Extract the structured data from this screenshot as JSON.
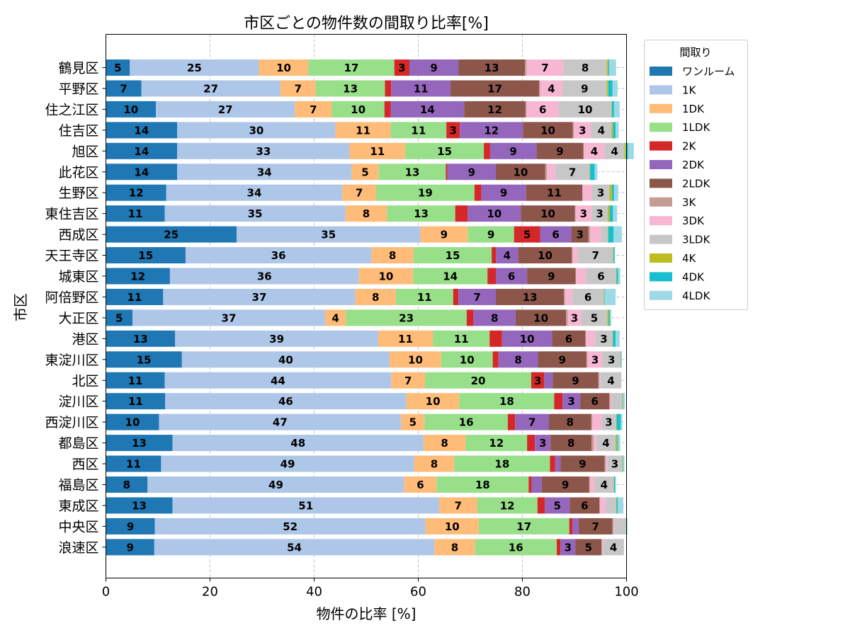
{
  "chart_data": {
    "type": "bar",
    "orientation": "horizontal",
    "stacked": true,
    "title": "市区ごとの物件数の間取り比率[%]",
    "xlabel": "物件の比率 [%]",
    "ylabel": "市区",
    "xlim": [
      0,
      100
    ],
    "xticks": [
      0,
      20,
      40,
      60,
      80,
      100
    ],
    "grid": true,
    "legend": {
      "title": "間取り",
      "placement": "right-outside-top"
    },
    "categories": [
      "鶴見区",
      "平野区",
      "住之江区",
      "住吉区",
      "旭区",
      "此花区",
      "生野区",
      "東住吉区",
      "西成区",
      "天王寺区",
      "城東区",
      "阿倍野区",
      "大正区",
      "港区",
      "東淀川区",
      "北区",
      "淀川区",
      "西淀川区",
      "都島区",
      "西区",
      "福島区",
      "東成区",
      "中央区",
      "浪速区"
    ],
    "series": [
      {
        "name": "ワンルーム",
        "color": "#1f77b4",
        "values": [
          4.6,
          6.8,
          9.6,
          13.7,
          13.7,
          13.7,
          11.6,
          11.3,
          25.1,
          15.3,
          12.3,
          11.0,
          5.1,
          13.3,
          14.6,
          11.3,
          11.4,
          10.2,
          12.8,
          10.6,
          8.0,
          12.8,
          9.4,
          9.3
        ]
      },
      {
        "name": "1K",
        "color": "#aec7e8",
        "values": [
          24.8,
          26.7,
          26.7,
          30.4,
          33.1,
          33.5,
          33.8,
          34.7,
          35.3,
          35.7,
          36.3,
          36.9,
          37.0,
          39.0,
          39.9,
          43.5,
          46.3,
          46.5,
          48.2,
          48.6,
          49.3,
          51.2,
          52.0,
          53.8
        ]
      },
      {
        "name": "1DK",
        "color": "#ffbb78",
        "values": [
          9.5,
          6.8,
          7.1,
          10.6,
          10.7,
          5.2,
          6.5,
          8.0,
          9.1,
          8.1,
          10.4,
          7.8,
          4.0,
          10.5,
          9.9,
          6.5,
          10.2,
          4.5,
          8.1,
          7.7,
          6.2,
          7.3,
          10.2,
          7.8
        ]
      },
      {
        "name": "1LDK",
        "color": "#98df8a",
        "values": [
          16.5,
          13.3,
          10.1,
          10.7,
          15.1,
          12.9,
          18.9,
          13.1,
          8.9,
          15.0,
          14.3,
          11.0,
          23.2,
          10.9,
          9.9,
          20.4,
          18.2,
          16.0,
          11.8,
          18.4,
          17.7,
          11.6,
          17.4,
          15.7
        ]
      },
      {
        "name": "2K",
        "color": "#d62728",
        "values": [
          2.9,
          1.2,
          1.2,
          2.6,
          1.2,
          0.3,
          1.3,
          2.4,
          5.0,
          0.8,
          1.6,
          1.0,
          1.3,
          2.4,
          1.1,
          2.5,
          1.6,
          1.4,
          1.5,
          1.0,
          0.6,
          1.4,
          0.6,
          0.7
        ]
      },
      {
        "name": "2DK",
        "color": "#9467bd",
        "values": [
          9.4,
          11.4,
          14.1,
          12.1,
          8.9,
          9.3,
          8.6,
          10.2,
          6.0,
          4.3,
          6.0,
          7.2,
          8.1,
          9.6,
          7.6,
          1.6,
          3.4,
          6.5,
          3.0,
          1.0,
          1.9,
          4.8,
          1.2,
          2.9
        ]
      },
      {
        "name": "2LDK",
        "color": "#8c564b",
        "values": [
          12.8,
          17.0,
          11.8,
          9.6,
          9.0,
          9.5,
          10.8,
          10.4,
          3.3,
          10.3,
          9.3,
          13.1,
          9.7,
          6.4,
          9.3,
          8.8,
          5.6,
          8.1,
          7.9,
          8.5,
          9.1,
          5.7,
          6.5,
          5.0
        ]
      },
      {
        "name": "3K",
        "color": "#c49c94",
        "values": [
          0.3,
          0.2,
          0.2,
          0.2,
          0.1,
          0.3,
          0.1,
          0.1,
          0.3,
          0.2,
          0.1,
          0.2,
          0.3,
          0.1,
          0.2,
          0.2,
          0.2,
          0.2,
          0.4,
          0.2,
          0.2,
          0.1,
          0.2,
          0.1
        ]
      },
      {
        "name": "3DK",
        "color": "#f7b6d2",
        "values": [
          7.1,
          4.3,
          6.2,
          3.3,
          4.0,
          1.6,
          1.8,
          3.1,
          2.0,
          1.0,
          1.9,
          1.4,
          2.6,
          1.8,
          2.9,
          0.2,
          0.3,
          1.8,
          0.5,
          0.3,
          0.9,
          1.1,
          0.1,
          0.2
        ]
      },
      {
        "name": "3LDK",
        "color": "#c7c7c7",
        "values": [
          8.3,
          8.5,
          10.1,
          3.9,
          3.8,
          6.6,
          3.3,
          3.1,
          1.4,
          6.7,
          5.8,
          6.0,
          5.0,
          3.3,
          3.4,
          4.0,
          2.0,
          2.8,
          3.7,
          2.9,
          3.6,
          2.0,
          2.3,
          4.0
        ]
      },
      {
        "name": "4K",
        "color": "#bcbd22",
        "values": [
          0.3,
          0.3,
          0.1,
          0.3,
          0.3,
          0.1,
          0.5,
          0.4,
          0.1,
          0.1,
          0.1,
          0.1,
          0.3,
          0.1,
          0.1,
          0.0,
          0.1,
          0.1,
          0.3,
          0.1,
          0.1,
          0.1,
          0.1,
          0.0
        ]
      },
      {
        "name": "4DK",
        "color": "#17becf",
        "values": [
          0.2,
          0.8,
          0.4,
          0.5,
          0.4,
          0.9,
          0.4,
          0.6,
          1.0,
          0.2,
          0.3,
          0.1,
          0.2,
          0.5,
          0.1,
          0.0,
          0.1,
          0.8,
          0.2,
          0.1,
          0.2,
          0.2,
          0.0,
          0.0
        ]
      },
      {
        "name": "4LDK",
        "color": "#9edae5",
        "values": [
          1.3,
          1.0,
          1.1,
          0.6,
          1.1,
          0.5,
          0.8,
          0.8,
          1.6,
          0.1,
          0.4,
          2.1,
          0.3,
          0.8,
          0.1,
          0.0,
          0.3,
          0.3,
          0.4,
          0.2,
          0.2,
          1.1,
          0.2,
          0.0
        ]
      }
    ]
  }
}
